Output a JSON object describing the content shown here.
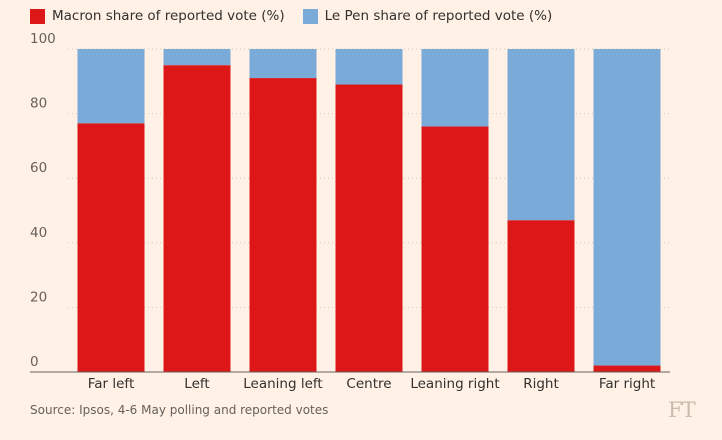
{
  "chart_data": {
    "type": "bar",
    "stacked": true,
    "categories": [
      "Far left",
      "Left",
      "Leaning left",
      "Centre",
      "Leaning right",
      "Right",
      "Far right"
    ],
    "series": [
      {
        "name": "Macron share of reported vote (%)",
        "color": "#dd1717",
        "values": [
          77,
          95,
          91,
          89,
          76,
          47,
          2
        ]
      },
      {
        "name": "Le Pen share of reported vote (%)",
        "color": "#7aaad8",
        "values": [
          23,
          5,
          9,
          11,
          24,
          53,
          98
        ]
      }
    ],
    "yticks": [
      "100",
      "80",
      "60",
      "40",
      "20",
      "0"
    ],
    "ylim": [
      0,
      100
    ],
    "title": "",
    "xlabel": "",
    "ylabel": ""
  },
  "legend": {
    "macron_label": "Macron share of reported vote (%)",
    "lepen_label": "Le Pen share of reported vote (%)",
    "macron_color": "#dd1717",
    "lepen_color": "#7aaad8"
  },
  "source": "Source: Ipsos, 4-6 May polling and reported votes",
  "logo": "FT"
}
